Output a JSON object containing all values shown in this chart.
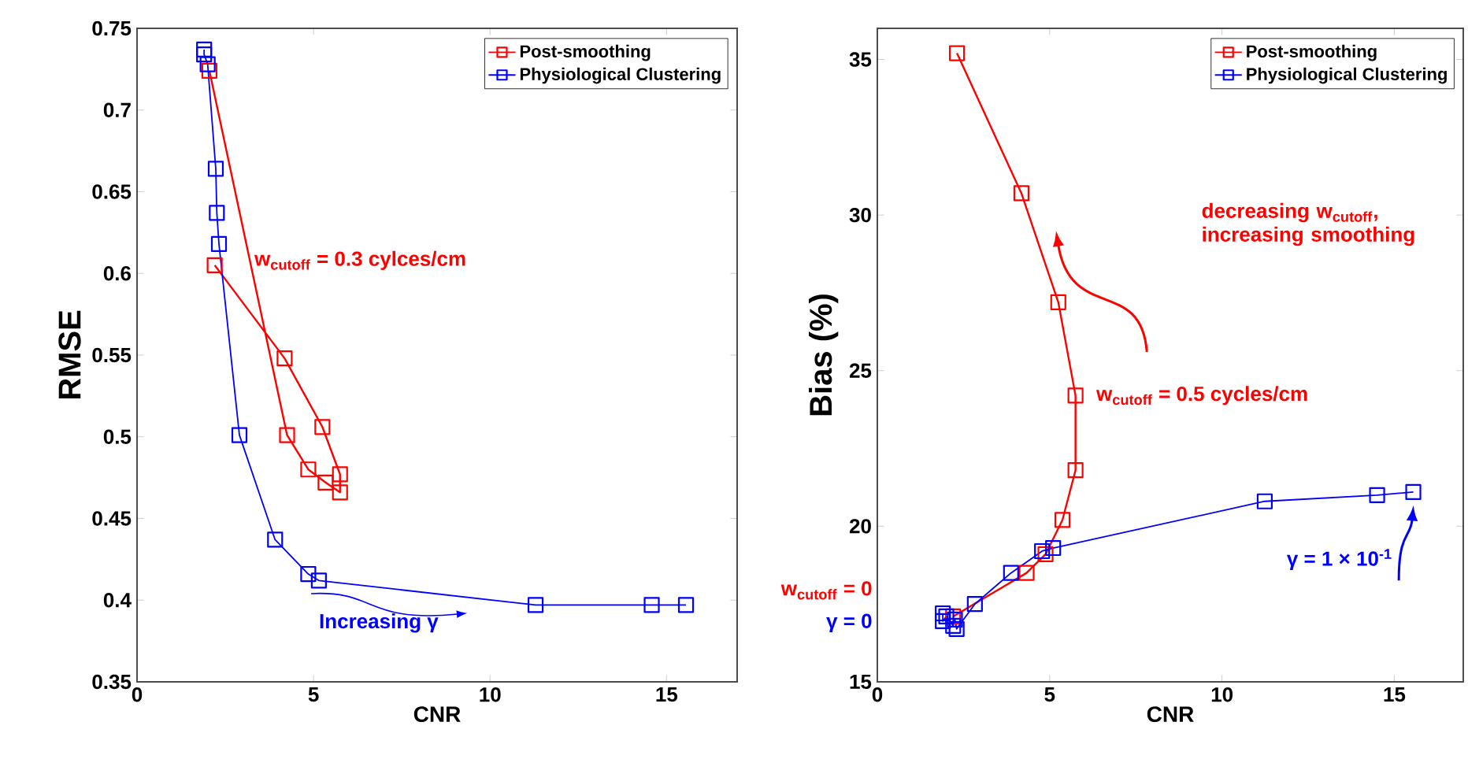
{
  "chart_data": [
    {
      "type": "line",
      "xlabel": "CNR",
      "ylabel": "RMSE",
      "xlim": [
        0,
        17
      ],
      "xticks": [
        0,
        5,
        10,
        15
      ],
      "ylim": [
        0.35,
        0.75
      ],
      "yticks": [
        0.35,
        0.4,
        0.45,
        0.5,
        0.55,
        0.6,
        0.65,
        0.7,
        0.75
      ],
      "legend": "top right",
      "marker": "square",
      "grid": false,
      "series": [
        {
          "name": "Post-smoothing",
          "color": "#ff0000",
          "x": [
            2.05,
            4.25,
            4.85,
            5.34,
            5.75,
            5.75,
            5.25,
            4.18,
            2.2
          ],
          "values": [
            0.724,
            0.501,
            0.48,
            0.472,
            0.466,
            0.477,
            0.506,
            0.548,
            0.605
          ]
        },
        {
          "name": "Physiological Clustering",
          "color": "#0000ff",
          "x": [
            1.9,
            1.9,
            2.0,
            2.23,
            2.26,
            2.32,
            2.9,
            3.91,
            4.85,
            5.15,
            11.29,
            14.58,
            15.55
          ],
          "values": [
            0.737,
            0.734,
            0.728,
            0.664,
            0.637,
            0.618,
            0.501,
            0.437,
            0.416,
            0.412,
            0.397,
            0.397,
            0.397
          ]
        }
      ],
      "annotations": [
        {
          "text": "w$_{cutoff}$ = 0.3 cylces/cm",
          "x": 2.2,
          "y": 0.605
        },
        "Increasing γ"
      ]
    },
    {
      "type": "line",
      "xlabel": "CNR",
      "ylabel": "Bias (%)",
      "xlim": [
        0,
        17
      ],
      "xticks": [
        0,
        5,
        10,
        15
      ],
      "ylim": [
        15,
        36
      ],
      "yticks": [
        15,
        20,
        25,
        30,
        35
      ],
      "legend": "top right",
      "marker": "square",
      "grid": false,
      "series": [
        {
          "name": "Post-smoothing",
          "color": "#ff0000",
          "x": [
            2.2,
            4.33,
            4.88,
            5.37,
            5.75,
            5.75,
            5.25,
            4.18,
            2.31
          ],
          "values": [
            17.1,
            18.5,
            19.1,
            20.2,
            21.8,
            24.2,
            27.2,
            30.7,
            35.2
          ]
        },
        {
          "name": "Physiological Clustering",
          "color": "#0000ff",
          "x": [
            1.9,
            1.9,
            2.0,
            2.2,
            2.25,
            2.3,
            2.83,
            3.88,
            4.78,
            5.1,
            11.24,
            14.5,
            15.55
          ],
          "values": [
            17.2,
            16.95,
            17.1,
            16.8,
            17.0,
            16.7,
            17.5,
            18.5,
            19.2,
            19.3,
            20.8,
            21.0,
            21.1
          ]
        }
      ],
      "annotations": [
        "decreasing w$_{cutoff}$, increasing smoothing",
        {
          "text": "w$_{cutoff}$ = 0.5 cycles/cm",
          "x": 5.75,
          "y": 24.2
        },
        "w$_{cutoff}$ = 0",
        "γ = 0",
        {
          "text": "γ = 1 × 10$^{-1}$",
          "x": 15.55,
          "y": 21.1
        }
      ]
    }
  ]
}
